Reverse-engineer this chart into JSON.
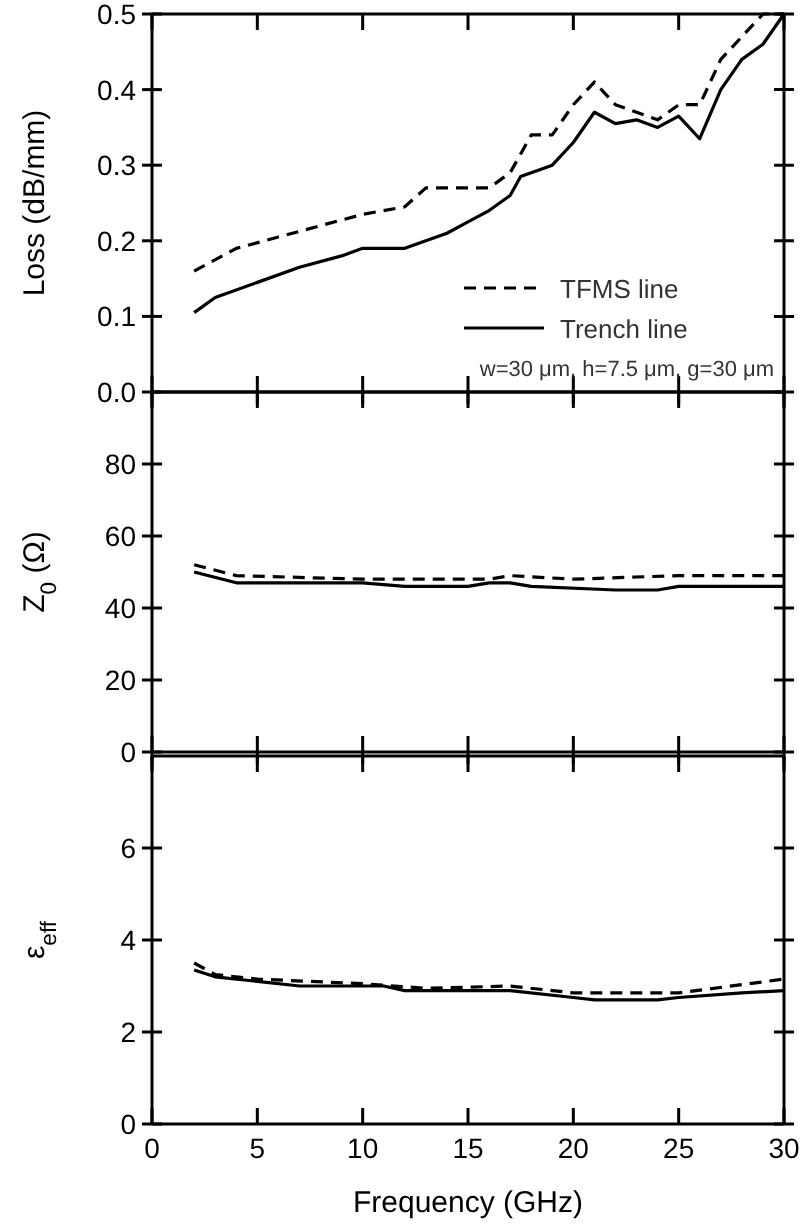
{
  "chart_data": [
    {
      "type": "line",
      "ylabel": "Loss (dB/mm)",
      "xlim": [
        0,
        30
      ],
      "xticks": [
        0,
        5,
        10,
        15,
        20,
        25,
        30
      ],
      "ylim": [
        0,
        0.5
      ],
      "yticks": [
        {
          "value": 0,
          "label": "0.0"
        },
        0.1,
        0.2,
        0.3,
        0.4,
        0.5
      ],
      "tick_labels": "y",
      "legend": "bottom right",
      "annotations": [
        "w=30 μm, h=7.5 μm, g=30 μm"
      ],
      "series": [
        {
          "name": "TFMS line",
          "color": "#000000",
          "line_style": "dashed",
          "x": [
            2,
            4,
            6,
            8,
            10,
            12,
            13,
            16,
            17,
            18,
            19,
            20,
            21,
            22,
            24,
            25,
            26,
            27,
            29,
            30
          ],
          "values": [
            0.16,
            0.19,
            0.205,
            0.22,
            0.235,
            0.245,
            0.27,
            0.27,
            0.29,
            0.34,
            0.34,
            0.38,
            0.41,
            0.38,
            0.36,
            0.38,
            0.38,
            0.44,
            0.5,
            0.5
          ]
        },
        {
          "name": "Trench line",
          "color": "#000000",
          "line_style": "solid",
          "x": [
            2,
            3,
            5,
            7,
            9,
            10,
            12,
            14,
            15,
            16,
            17,
            17.5,
            19,
            20,
            21,
            22,
            23,
            24,
            25,
            26,
            27,
            28,
            29,
            30
          ],
          "values": [
            0.105,
            0.125,
            0.145,
            0.165,
            0.18,
            0.19,
            0.19,
            0.21,
            0.225,
            0.24,
            0.26,
            0.285,
            0.3,
            0.33,
            0.37,
            0.355,
            0.36,
            0.35,
            0.365,
            0.335,
            0.4,
            0.44,
            0.46,
            0.5
          ]
        }
      ]
    },
    {
      "type": "line",
      "ylabel": "Z$_{0}$ (Ω)",
      "xlim": [
        0,
        30
      ],
      "xticks": [
        0,
        5,
        10,
        15,
        20,
        25,
        30
      ],
      "ylim": [
        0,
        100
      ],
      "yticks": [
        0,
        20,
        40,
        60,
        80
      ],
      "tick_labels": "y",
      "series": [
        {
          "color": "#000000",
          "line_style": "dashed",
          "x": [
            2,
            4,
            10,
            16,
            17,
            20,
            25,
            30
          ],
          "values": [
            52,
            49,
            48,
            48,
            49,
            48,
            49,
            49
          ]
        },
        {
          "color": "#000000",
          "line_style": "solid",
          "x": [
            2,
            4,
            10,
            12,
            15,
            16,
            17,
            18,
            22,
            24,
            25,
            30
          ],
          "values": [
            50,
            47,
            47,
            46,
            46,
            47,
            47,
            46,
            45,
            45,
            46,
            46
          ]
        }
      ]
    },
    {
      "type": "line",
      "ylabel": "ε$_{eff}$",
      "xlabel": "Frequency (GHz)",
      "xlim": [
        0,
        30
      ],
      "xticks": [
        0,
        5,
        10,
        15,
        20,
        25,
        30
      ],
      "ylim": [
        0,
        8
      ],
      "yticks": [
        0,
        2,
        4,
        6
      ],
      "series": [
        {
          "color": "#000000",
          "line_style": "dashed",
          "x": [
            2,
            3,
            5,
            10,
            13,
            17,
            20,
            25,
            30
          ],
          "values": [
            3.5,
            3.25,
            3.15,
            3.05,
            2.95,
            3.0,
            2.85,
            2.85,
            3.15
          ]
        },
        {
          "color": "#000000",
          "line_style": "solid",
          "x": [
            2,
            3,
            5,
            7,
            11,
            12,
            17,
            20,
            21,
            24,
            25,
            28,
            30
          ],
          "values": [
            3.35,
            3.2,
            3.1,
            3.0,
            3.0,
            2.9,
            2.9,
            2.75,
            2.7,
            2.7,
            2.75,
            2.85,
            2.9
          ]
        }
      ]
    }
  ]
}
